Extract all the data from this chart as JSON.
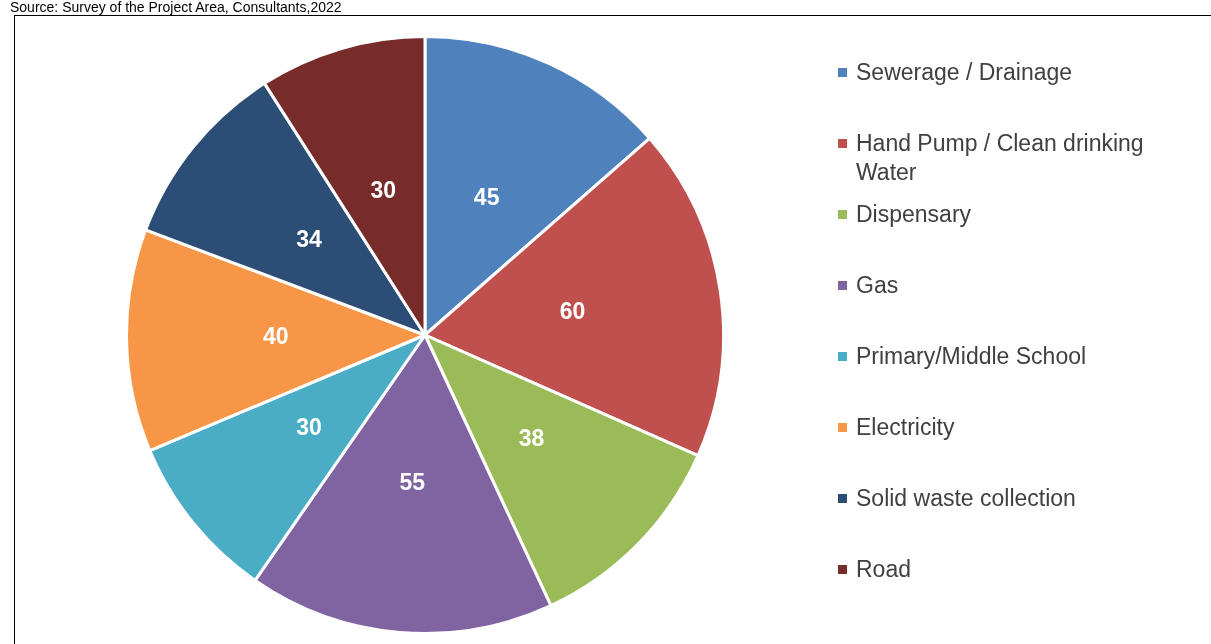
{
  "chart_data": {
    "type": "pie",
    "categories": [
      "Sewerage / Drainage",
      "Hand Pump / Clean drinking Water",
      "Dispensary",
      "Gas",
      "Primary/Middle School",
      "Electricity",
      "Solid waste collection",
      "Road"
    ],
    "values": [
      45,
      60,
      38,
      55,
      30,
      40,
      34,
      30
    ],
    "colors": [
      "#4f81bd",
      "#c0504d",
      "#9bbb59",
      "#8064a2",
      "#4bacc6",
      "#f79646",
      "#2c4d75",
      "#772c2a"
    ],
    "data_labels": true,
    "legend": "right",
    "annotations": [
      "Source: Survey of the Project Area, Consultants,2022"
    ]
  }
}
